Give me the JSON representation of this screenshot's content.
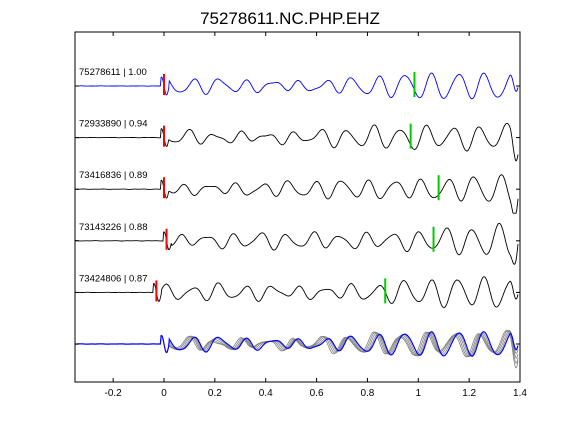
{
  "chart_data": {
    "type": "line",
    "title": "75278611.NC.PHP.EHZ",
    "xlabel": "",
    "ylabel": "",
    "xlim": [
      -0.35,
      1.4
    ],
    "x_ticks": [
      "-0.2",
      "0",
      "0.2",
      "0.4",
      "0.6",
      "0.8",
      "1",
      "1.2",
      "1.4"
    ],
    "x_tick_values": [
      -0.2,
      0,
      0.2,
      0.4,
      0.6,
      0.8,
      1.0,
      1.2,
      1.4
    ],
    "y_tick_count": 6,
    "grid": false,
    "series": [
      {
        "label": "75278611 | 1.00",
        "color": "#0000ff",
        "p_pick": 0.0,
        "s_pick": 0.985,
        "seed": 1.0
      },
      {
        "label": "72933890 | 0.94",
        "color": "#000000",
        "p_pick": 0.0,
        "s_pick": 0.97,
        "seed": 2.3
      },
      {
        "label": "73416836 | 0.89",
        "color": "#000000",
        "p_pick": 0.0,
        "s_pick": 1.08,
        "seed": 3.7
      },
      {
        "label": "73143226 | 0.88",
        "color": "#000000",
        "p_pick": 0.01,
        "s_pick": 1.06,
        "seed": 4.9
      },
      {
        "label": "73424806 | 0.87",
        "color": "#000000",
        "p_pick": -0.03,
        "s_pick": 0.87,
        "seed": 6.1
      }
    ],
    "stack": {
      "label": "",
      "color": "#0000ff",
      "overlay_color": "#808080"
    },
    "p_pick_color": "#ff0000",
    "s_pick_color": "#00cc00"
  }
}
